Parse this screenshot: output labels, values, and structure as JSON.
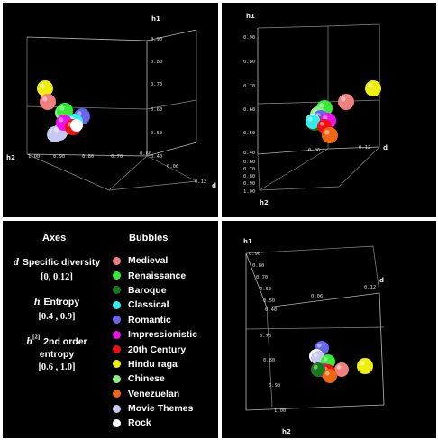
{
  "axes_legend": {
    "heading": "Axes",
    "items": [
      {
        "symbol": "d",
        "name": "Specific diversity",
        "range": "[0, 0.12]"
      },
      {
        "symbol": "h",
        "name": "Entropy",
        "range": "[0.4 , 0.9]"
      },
      {
        "symbol": "h",
        "superscript": "[2]",
        "name_line1": "2nd order",
        "name_line2": "entropy",
        "range": "[0.6 , 1.0]"
      }
    ]
  },
  "bubbles_legend": {
    "heading": "Bubbles",
    "items": [
      {
        "label": "Medieval",
        "color": "#f08080"
      },
      {
        "label": "Renaissance",
        "color": "#33ee33"
      },
      {
        "label": "Baroque",
        "color": "#1a7a1a"
      },
      {
        "label": "Classical",
        "color": "#33eeee"
      },
      {
        "label": "Romantic",
        "color": "#6666ee"
      },
      {
        "label": "Impressionistic",
        "color": "#ee11ee"
      },
      {
        "label": "20th Century",
        "color": "#ee1111"
      },
      {
        "label": "Hindu raga",
        "color": "#eeee11"
      },
      {
        "label": "Chinese",
        "color": "#88ee88"
      },
      {
        "label": "Venezuelan",
        "color": "#ee6611"
      },
      {
        "label": "Movie Themes",
        "color": "#c8c8ee"
      },
      {
        "label": "Rock",
        "color": "#ffffff"
      }
    ]
  },
  "views": {
    "view1": {
      "axis_labels": {
        "h1": "h1",
        "h2": "h2",
        "d": "d"
      },
      "h1_ticks": [
        "0.90",
        "0.80",
        "0.70",
        "0.60",
        "0.50",
        "0.40"
      ],
      "h2_ticks": [
        "1.00",
        "0.90",
        "0.80",
        "0.70",
        "0.60"
      ],
      "d_ticks": [
        "0.06",
        "0.12"
      ]
    },
    "view2": {
      "axis_labels": {
        "h1": "h1",
        "h2": "h2",
        "d": "d"
      },
      "h1_ticks": [
        "0.90",
        "0.80",
        "0.70",
        "0.60",
        "0.50",
        "0.40"
      ],
      "h2_ticks": [
        "0.60",
        "0.70",
        "0.80",
        "0.90",
        "1.00"
      ],
      "d_ticks": [
        "0.06",
        "0.12"
      ]
    },
    "view3": {
      "axis_labels": {
        "h1": "h1",
        "h2": "h2",
        "d": "d"
      },
      "h1_ticks": [
        "0.90",
        "0.80",
        "0.70",
        "0.60",
        "0.50",
        "0.40"
      ],
      "h2_ticks": [
        "0.70",
        "0.80",
        "0.90",
        "1.00"
      ],
      "d_ticks": [
        "0.06",
        "0.12"
      ]
    }
  }
}
